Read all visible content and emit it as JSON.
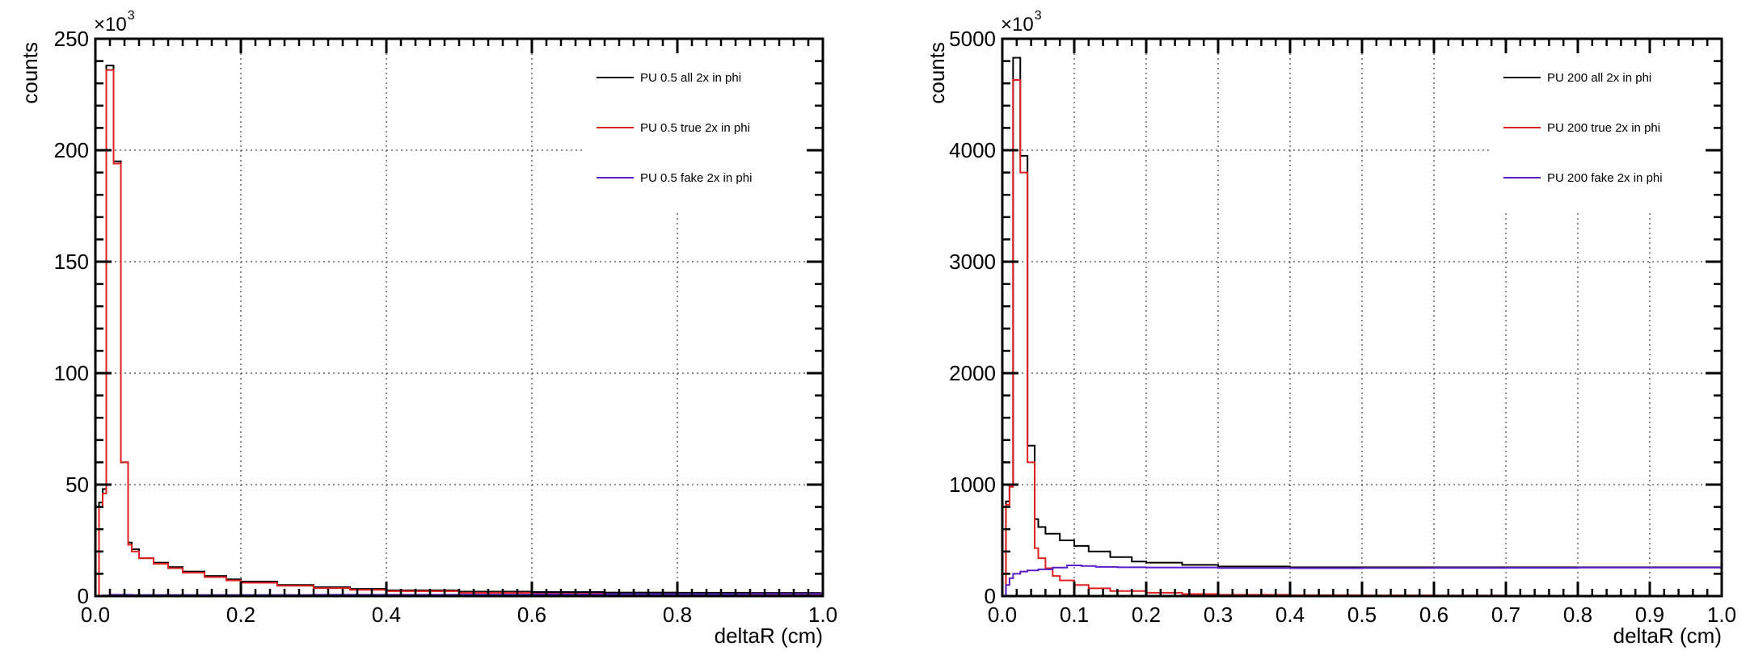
{
  "chart_data": [
    {
      "type": "histogram",
      "ylabel": "counts",
      "xlabel": "deltaR (cm)",
      "y_exponent_base": "×10",
      "y_exponent": "3",
      "xlim": [
        0.0,
        1.0
      ],
      "ylim": [
        0,
        250
      ],
      "x_ticks": [
        "0.0",
        "0.2",
        "0.4",
        "0.6",
        "0.8",
        "1.0"
      ],
      "x_tick_values": [
        0.0,
        0.2,
        0.4,
        0.6,
        0.8,
        1.0
      ],
      "y_ticks": [
        "0",
        "50",
        "100",
        "150",
        "200",
        "250"
      ],
      "y_tick_values": [
        0,
        50,
        100,
        150,
        200,
        250
      ],
      "grid": true,
      "legend_position": "top-right",
      "series": [
        {
          "name": "PU 0.5 all 2x in phi",
          "color": "#000000",
          "steps": [
            [
              0.0,
              0
            ],
            [
              0.005,
              42
            ],
            [
              0.01,
              48
            ],
            [
              0.015,
              238
            ],
            [
              0.025,
              195
            ],
            [
              0.035,
              60
            ],
            [
              0.045,
              24
            ],
            [
              0.05,
              21
            ],
            [
              0.06,
              17
            ],
            [
              0.08,
              15
            ],
            [
              0.1,
              13
            ],
            [
              0.12,
              11
            ],
            [
              0.15,
              9
            ],
            [
              0.18,
              7.5
            ],
            [
              0.2,
              6.5
            ],
            [
              0.25,
              5
            ],
            [
              0.3,
              4
            ],
            [
              0.35,
              3.2
            ],
            [
              0.4,
              2.6
            ],
            [
              0.5,
              2
            ],
            [
              0.6,
              1.8
            ],
            [
              0.7,
              1.6
            ],
            [
              0.8,
              1.5
            ],
            [
              0.9,
              1.4
            ],
            [
              0.995,
              1.3
            ],
            [
              1.0,
              1.3
            ]
          ]
        },
        {
          "name": "PU 0.5 true 2x in phi",
          "color": "#e02020",
          "steps": [
            [
              0.0,
              0
            ],
            [
              0.005,
              40
            ],
            [
              0.01,
              46
            ],
            [
              0.015,
              236
            ],
            [
              0.025,
              194
            ],
            [
              0.035,
              60
            ],
            [
              0.045,
              23
            ],
            [
              0.05,
              20
            ],
            [
              0.06,
              17
            ],
            [
              0.08,
              14.5
            ],
            [
              0.1,
              12.5
            ],
            [
              0.12,
              10.5
            ],
            [
              0.15,
              8.5
            ],
            [
              0.18,
              7
            ],
            [
              0.2,
              6
            ],
            [
              0.25,
              4.6
            ],
            [
              0.3,
              3.6
            ],
            [
              0.35,
              2.8
            ],
            [
              0.4,
              2.2
            ],
            [
              0.5,
              1.5
            ],
            [
              0.6,
              1.1
            ],
            [
              0.7,
              0.8
            ],
            [
              0.8,
              0.6
            ],
            [
              0.9,
              0.5
            ],
            [
              0.995,
              0.4
            ],
            [
              1.0,
              0.4
            ]
          ]
        },
        {
          "name": "PU 0.5 fake 2x in phi",
          "color": "#5a1fc4",
          "steps": [
            [
              0.0,
              0
            ],
            [
              0.01,
              0.3
            ],
            [
              0.02,
              0.6
            ],
            [
              0.05,
              0.5
            ],
            [
              0.1,
              0.5
            ],
            [
              0.2,
              0.5
            ],
            [
              0.3,
              0.6
            ],
            [
              0.4,
              0.6
            ],
            [
              0.5,
              0.7
            ],
            [
              0.6,
              0.8
            ],
            [
              0.7,
              0.9
            ],
            [
              0.8,
              0.9
            ],
            [
              0.9,
              1.0
            ],
            [
              1.0,
              1.0
            ]
          ]
        }
      ]
    },
    {
      "type": "histogram",
      "ylabel": "counts",
      "xlabel": "deltaR (cm)",
      "y_exponent_base": "×10",
      "y_exponent": "3",
      "xlim": [
        0.0,
        1.0
      ],
      "ylim": [
        0,
        5000
      ],
      "x_ticks": [
        "0.0",
        "0.1",
        "0.2",
        "0.3",
        "0.4",
        "0.5",
        "0.6",
        "0.7",
        "0.8",
        "0.9",
        "1.0"
      ],
      "x_tick_values": [
        0.0,
        0.1,
        0.2,
        0.3,
        0.4,
        0.5,
        0.6,
        0.7,
        0.8,
        0.9,
        1.0
      ],
      "y_ticks": [
        "0",
        "1000",
        "2000",
        "3000",
        "4000",
        "5000"
      ],
      "y_tick_values": [
        0,
        1000,
        2000,
        3000,
        4000,
        5000
      ],
      "grid": true,
      "legend_position": "top-right",
      "series": [
        {
          "name": "PU 200 all 2x in phi",
          "color": "#000000",
          "steps": [
            [
              0.0,
              0
            ],
            [
              0.005,
              850
            ],
            [
              0.01,
              1000
            ],
            [
              0.015,
              4830
            ],
            [
              0.025,
              3950
            ],
            [
              0.035,
              1350
            ],
            [
              0.045,
              690
            ],
            [
              0.05,
              620
            ],
            [
              0.06,
              560
            ],
            [
              0.08,
              500
            ],
            [
              0.1,
              450
            ],
            [
              0.12,
              400
            ],
            [
              0.15,
              350
            ],
            [
              0.18,
              310
            ],
            [
              0.2,
              300
            ],
            [
              0.25,
              280
            ],
            [
              0.3,
              265
            ],
            [
              0.4,
              258
            ],
            [
              0.5,
              258
            ],
            [
              0.6,
              258
            ],
            [
              0.7,
              258
            ],
            [
              0.8,
              258
            ],
            [
              0.9,
              258
            ],
            [
              1.0,
              258
            ]
          ]
        },
        {
          "name": "PU 200 true 2x in phi",
          "color": "#e02020",
          "steps": [
            [
              0.0,
              0
            ],
            [
              0.005,
              820
            ],
            [
              0.01,
              980
            ],
            [
              0.015,
              4630
            ],
            [
              0.025,
              3800
            ],
            [
              0.035,
              1200
            ],
            [
              0.045,
              430
            ],
            [
              0.05,
              340
            ],
            [
              0.06,
              250
            ],
            [
              0.07,
              180
            ],
            [
              0.08,
              140
            ],
            [
              0.1,
              100
            ],
            [
              0.12,
              70
            ],
            [
              0.15,
              45
            ],
            [
              0.2,
              30
            ],
            [
              0.25,
              18
            ],
            [
              0.3,
              12
            ],
            [
              0.4,
              8
            ],
            [
              0.5,
              6
            ],
            [
              0.6,
              5
            ],
            [
              0.7,
              4
            ],
            [
              0.8,
              3
            ],
            [
              0.9,
              2
            ],
            [
              1.0,
              2
            ]
          ]
        },
        {
          "name": "PU 200 fake 2x in phi",
          "color": "#5a1fc4",
          "steps": [
            [
              0.0,
              0
            ],
            [
              0.005,
              100
            ],
            [
              0.01,
              160
            ],
            [
              0.015,
              200
            ],
            [
              0.025,
              220
            ],
            [
              0.035,
              230
            ],
            [
              0.05,
              240
            ],
            [
              0.07,
              255
            ],
            [
              0.09,
              275
            ],
            [
              0.11,
              270
            ],
            [
              0.13,
              262
            ],
            [
              0.16,
              258
            ],
            [
              0.2,
              256
            ],
            [
              0.3,
              252
            ],
            [
              0.4,
              250
            ],
            [
              0.5,
              252
            ],
            [
              0.6,
              253
            ],
            [
              0.7,
              254
            ],
            [
              0.8,
              255
            ],
            [
              0.9,
              255
            ],
            [
              1.0,
              255
            ]
          ]
        }
      ]
    }
  ]
}
